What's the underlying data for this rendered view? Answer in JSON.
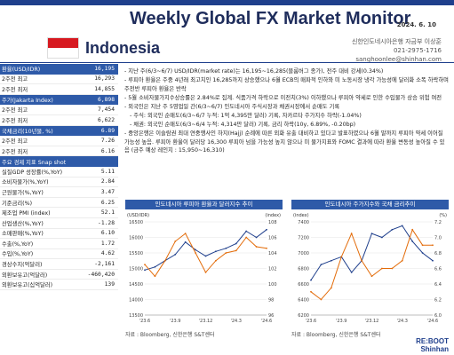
{
  "header": {
    "title": "Weekly Global FX Market Monitor",
    "date": "2024. 6. 10",
    "country": "Indonesia",
    "contact_name": "신한인도네시아은행 자금부 이상훈",
    "contact_phone": "021-2975-1716",
    "contact_email": "sanghoonlee@shinhan.com"
  },
  "colors": {
    "primary": "#1f3f8c",
    "accent": "#2e5aa8",
    "flag_red": "#d71920",
    "series_1": "#1f3f8c",
    "series_2": "#e36c0a"
  },
  "left_table": [
    {
      "label": "환율(USD/IDR)",
      "value": "16,195",
      "highlight": true
    },
    {
      "label": "2주전 최고",
      "value": "16,293",
      "highlight": false
    },
    {
      "label": "2주전 최저",
      "value": "14,855",
      "highlight": false
    },
    {
      "label": "주가(Jakarta Index)",
      "value": "6,898",
      "highlight": true
    },
    {
      "label": "2주전 최고",
      "value": "7,454",
      "highlight": false
    },
    {
      "label": "2주전 최저",
      "value": "6,622",
      "highlight": false
    },
    {
      "label": "국채금리(10년물, %)",
      "value": "6.89",
      "highlight": true
    },
    {
      "label": "2주전 최고",
      "value": "7.26",
      "highlight": false
    },
    {
      "label": "2주전 최저",
      "value": "6.16",
      "highlight": false
    },
    {
      "label": "주요 경제 지표 Snap shot",
      "value": "",
      "highlight": true
    },
    {
      "label": "실질GDP 성장률(%,YoY)",
      "value": "5.11",
      "highlight": false
    },
    {
      "label": "소비자물가(%,YoY)",
      "value": "2.84",
      "highlight": false
    },
    {
      "label": "근원물가(%,YoY)",
      "value": "3.47",
      "highlight": false
    },
    {
      "label": "기준금리(%)",
      "value": "6.25",
      "highlight": false
    },
    {
      "label": "제조업 PMI (index)",
      "value": "52.1",
      "highlight": false
    },
    {
      "label": "산업생산(%,YoY)",
      "value": "-1.28",
      "highlight": false
    },
    {
      "label": "소매판매(%,YoY)",
      "value": "6.10",
      "highlight": false
    },
    {
      "label": "수출(%,YoY)",
      "value": "1.72",
      "highlight": false
    },
    {
      "label": "수입(%,YoY)",
      "value": "4.62",
      "highlight": false
    },
    {
      "label": "경상수지(억달러)",
      "value": "-2,161",
      "highlight": false
    },
    {
      "label": "외환보유고(억달러)",
      "value": "-460,420",
      "highlight": false
    },
    {
      "label": "외환보유고(십억달러)",
      "value": "139",
      "highlight": false
    }
  ],
  "bullets": [
    {
      "text": "- 지난 주(6/3~6/7) USD/IDR(market rate)는 16,195~16,285(블룸버그 종가), 전주 대비 강세(0.34%)",
      "sub": false
    },
    {
      "text": "- 루피아 환율은 주중 4년래 최고치인 16,285까지 상승했으나 6월 ECB의 매파적 인하와 미 노동시장 냉각 가능성에 달러화 소폭 하락하며 주전반 루피아 환율은 반락",
      "sub": false
    },
    {
      "text": "- 5월 소비자물가지수상승률은 2.84%로 집계. 식품가격 하락으로 이전치(3%) 이하했으나 루피아 약세로 인한 수입물가 상승 위험 여전",
      "sub": false
    },
    {
      "text": "- 외국인은 지난 주 5영업일 간(6/3~6/7) 인도네시아 주식시장과 채권시장에서 순매도 기록",
      "sub": false
    },
    {
      "text": "- 주식: 외국인 순매도(6/3~6/7 누적: 1억 4,395만 달러) 기록, 자카르타 주가지수 하락(-1.04%)",
      "sub": true
    },
    {
      "text": "- 채권: 외국인 순매도(6/3~6/4 누적: 4,314만 달러) 기록, 금리 하락(10y, 6.89%, -0.20bp)",
      "sub": true
    },
    {
      "text": "- 중앙은행은 이슬람권 최대 연중행사인 하지(Hajj) 순례에 따른 외화 유출 대비하고 있다고 발표하였으나 6월 말까지 루피아 약세 이어질 가능성 높음. 루피아 환율이 달러당 16,300 루피아 넘을 가능성 높지 않으나 미 물가지표와 FOMC 결과에 따라 환율 변동성 높아질 수 있음 (금주 예상 레인지 : 15,950~16,310)",
      "sub": false
    }
  ],
  "chart_1": {
    "title": "인도네시아 루피아 환율과 달러지수 추이",
    "y_left_label": "(USD/IDR)",
    "y_right_label": "(index)",
    "y_left_ticks": [
      "16500",
      "16000",
      "15500",
      "15000",
      "14500",
      "14000",
      "13500"
    ],
    "y_right_ticks": [
      "108",
      "106",
      "104",
      "102",
      "100",
      "98",
      "96"
    ],
    "x_ticks": [
      "'23.6",
      "'23.9",
      "'23.12",
      "'24.3",
      "'24.6"
    ],
    "source": "자료 : Bloomberg, 신한은행 S&T센터"
  },
  "chart_2": {
    "title": "인도네시아 주가지수와 국채 금리추이",
    "y_left_label": "(index)",
    "y_right_label": "(%)",
    "y_left_ticks": [
      "7400",
      "7200",
      "7000",
      "6800",
      "6600",
      "6400",
      "6200"
    ],
    "y_right_ticks": [
      "7.2",
      "7.0",
      "6.8",
      "6.6",
      "6.4",
      "6.2",
      "6.0"
    ],
    "x_ticks": [
      "'23.6",
      "'23.9",
      "'23.12",
      "'24.3",
      "'24.6"
    ],
    "source": "자료 : Bloomberg, 신한은행 S&T센터"
  },
  "chart_data": [
    {
      "type": "line",
      "title": "인도네시아 루피아 환율과 달러지수 추이",
      "x": [
        "'23.6",
        "'23.7",
        "'23.8",
        "'23.9",
        "'23.10",
        "'23.11",
        "'23.12",
        "'24.1",
        "'24.2",
        "'24.3",
        "'24.4",
        "'24.5",
        "'24.6"
      ],
      "series": [
        {
          "values": [
            14950,
            15050,
            15250,
            15450,
            15850,
            15600,
            15400,
            15550,
            15650,
            15800,
            16200,
            16000,
            16250
          ]
        },
        {
          "values": [
            102.5,
            101.0,
            103.0,
            105.5,
            106.5,
            104.0,
            101.5,
            103.0,
            104.0,
            104.3,
            106.0,
            104.8,
            104.6
          ]
        }
      ],
      "ylim": [
        13500,
        16500
      ],
      "ylim_right": [
        96,
        108
      ]
    },
    {
      "type": "line",
      "title": "인도네시아 주가지수와 국채 금리추이",
      "x": [
        "'23.6",
        "'23.7",
        "'23.8",
        "'23.9",
        "'23.10",
        "'23.11",
        "'23.12",
        "'24.1",
        "'24.2",
        "'24.3",
        "'24.4",
        "'24.5",
        "'24.6"
      ],
      "series": [
        {
          "values": [
            6650,
            6850,
            6900,
            6950,
            6750,
            6900,
            7250,
            7200,
            7300,
            7350,
            7150,
            7000,
            6900
          ]
        },
        {
          "values": [
            6.3,
            6.2,
            6.35,
            6.75,
            7.05,
            6.7,
            6.5,
            6.6,
            6.6,
            6.7,
            7.1,
            6.9,
            6.9
          ]
        }
      ],
      "ylim": [
        6200,
        7400
      ],
      "ylim_right": [
        6.0,
        7.2
      ]
    }
  ],
  "logo": {
    "line1": "RE:BOOT",
    "line2": "Shinhan"
  }
}
